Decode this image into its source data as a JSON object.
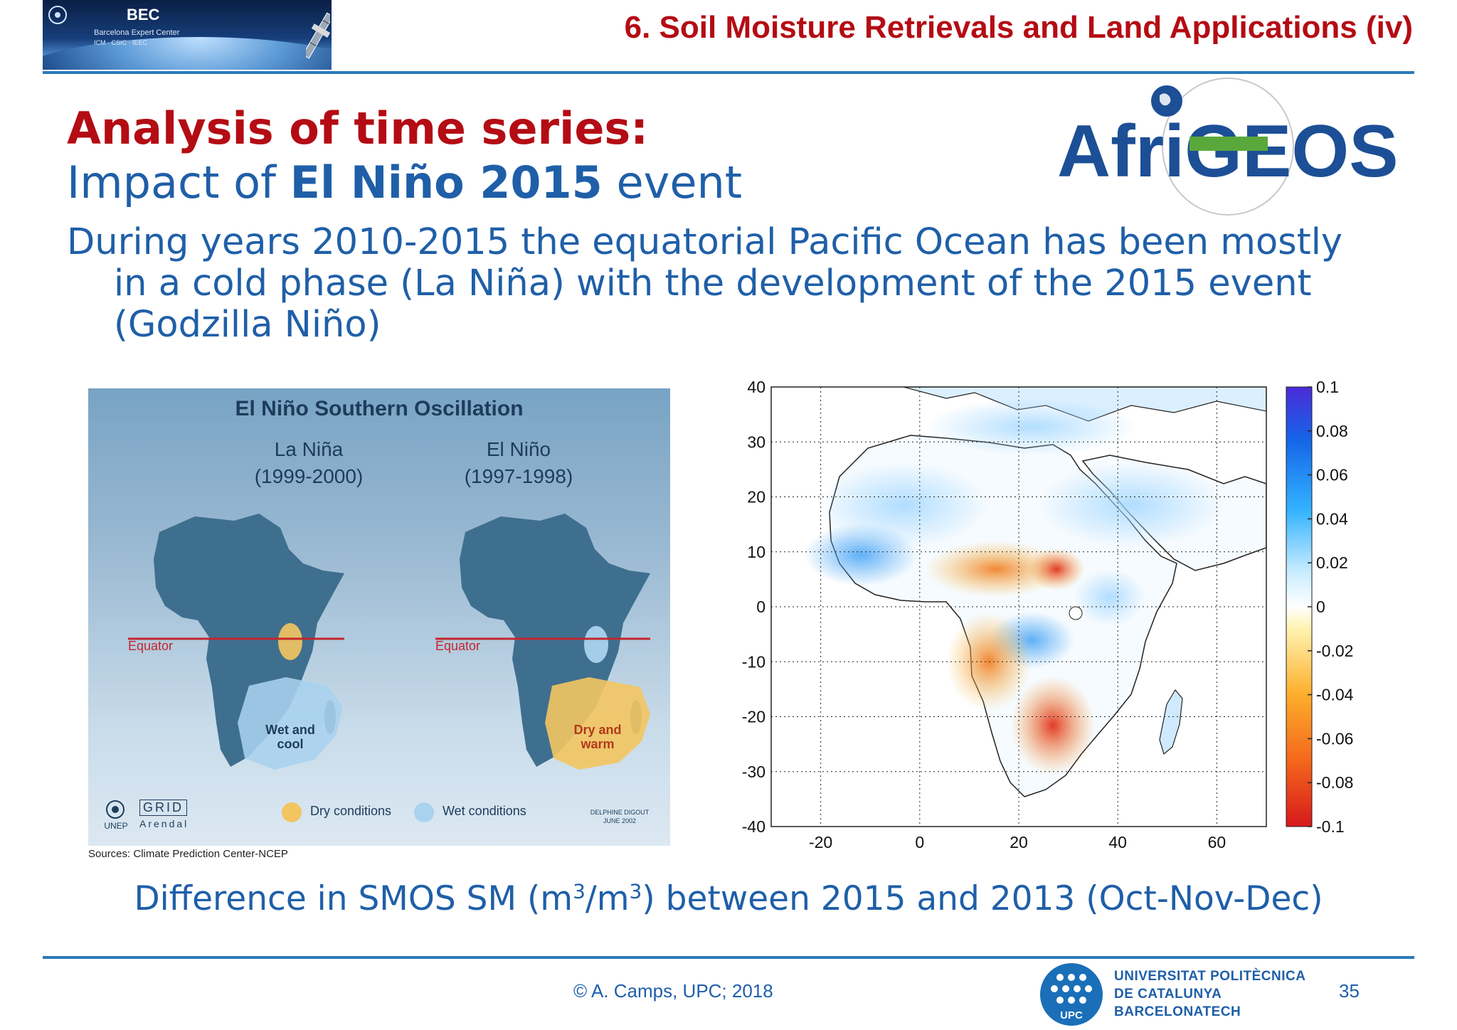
{
  "header": {
    "logo_title": "BEC",
    "logo_subtitle": "Barcelona Expert Center",
    "logo_institutions": "ICM · CSIC · IEEC",
    "section_title": "6. Soil Moisture Retrievals and Land Applications (iv)"
  },
  "heading": {
    "bold": "Analysis of time series:",
    "sub_prefix": "Impact of ",
    "sub_bold": "El Niño 2015",
    "sub_suffix": " event"
  },
  "logo_afrigeoss": "AfriGEOSS",
  "intro": {
    "line1": "During years 2010-2015 the equatorial Pacific Ocean has been mostly",
    "line2": "in a cold phase (La Niña) with the development of the 2015 event",
    "line3": "(Godzilla Niño)"
  },
  "enso_figure": {
    "title": "El Niño Southern Oscillation",
    "left_panel": {
      "name": "La Niña",
      "years": "(1999-2000)",
      "equator": "Equator",
      "label": "Wet and cool"
    },
    "right_panel": {
      "name": "El Niño",
      "years": "(1997-1998)",
      "equator": "Equator",
      "label": "Dry and warm"
    },
    "legend_dry": "Dry conditions",
    "legend_wet": "Wet conditions",
    "unep": "UNEP",
    "grid": "GRID",
    "arendal": "Arendal",
    "credit": "DELPHINE DIGOUT JUNE 2002",
    "sources": "Sources: Climate Prediction Center-NCEP",
    "colors": {
      "dry": "#f3c560",
      "wet": "#a9d2ee",
      "land": "#3f6f8f",
      "equator": "#c4262e"
    }
  },
  "chart_data": {
    "type": "heatmap",
    "title": "",
    "xlabel": "",
    "ylabel": "",
    "xlim": [
      -30,
      70
    ],
    "ylim": [
      -40,
      40
    ],
    "x_ticks": [
      "-20",
      "0",
      "20",
      "40",
      "60"
    ],
    "y_ticks": [
      "40",
      "30",
      "20",
      "10",
      "0",
      "-10",
      "-20",
      "-30",
      "-40"
    ],
    "grid": true,
    "colorbar": {
      "min": -0.1,
      "max": 0.1,
      "ticks": [
        "0.1",
        "0.08",
        "0.06",
        "0.04",
        "0.02",
        "0",
        "-0.02",
        "-0.04",
        "-0.06",
        "-0.08",
        "-0.1"
      ],
      "colors": [
        "#d7191c",
        "#f4671c",
        "#fdae2c",
        "#fff3b0",
        "#ffffff",
        "#c8ecff",
        "#33b3ff",
        "#1565e8",
        "#4b2bd8"
      ]
    },
    "regions": [
      {
        "lon": 5,
        "lat": 24,
        "value": 0.01
      },
      {
        "lon": -10,
        "lat": 12,
        "value": 0.05
      },
      {
        "lon": 28,
        "lat": 8,
        "value": -0.06
      },
      {
        "lon": 35,
        "lat": 30,
        "value": 0.03
      },
      {
        "lon": 20,
        "lat": -12,
        "value": -0.05
      },
      {
        "lon": 30,
        "lat": -28,
        "value": -0.08
      },
      {
        "lon": 47,
        "lat": -20,
        "value": 0.02
      }
    ]
  },
  "caption": {
    "prefix": "Difference in SMOS SM (m",
    "sup1": "3",
    "mid": "/m",
    "sup2": "3",
    "suffix": ") between 2015 and 2013 (Oct-Nov-Dec)"
  },
  "footer": {
    "copyright": "© A. Camps, UPC; 2018",
    "upc_abbrev": "UPC",
    "upc_line1": "UNIVERSITAT POLITÈCNICA",
    "upc_line2": "DE CATALUNYA",
    "upc_line3": "BARCELONATECH",
    "page": "35"
  }
}
